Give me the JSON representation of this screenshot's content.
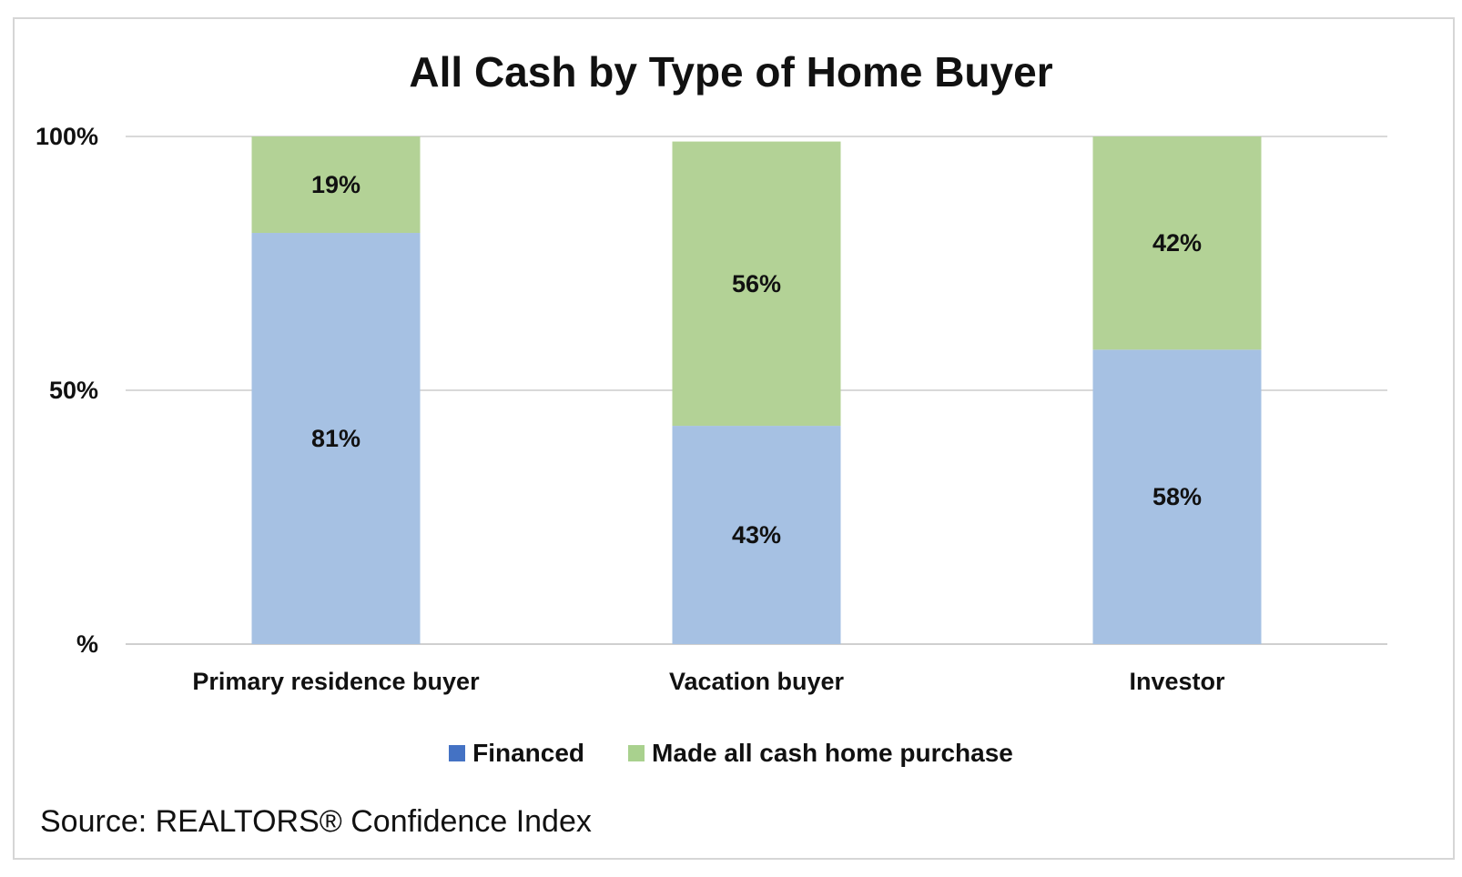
{
  "source": "Source: REALTORS® Confidence Index",
  "colors": {
    "financed_legend": "#4472c4",
    "financed_bar": "#a6c1e3",
    "cash_legend": "#a9d18e",
    "cash_bar": "#b3d296",
    "gridline": "#d9d9d9"
  },
  "chart_data": {
    "type": "bar",
    "stacked": true,
    "title": "All Cash by Type of Home Buyer",
    "xlabel": "",
    "ylabel": "",
    "categories": [
      "Primary residence buyer",
      "Vacation buyer",
      "Investor"
    ],
    "series": [
      {
        "name": "Financed",
        "values": [
          81,
          43,
          58
        ],
        "labels": [
          "81%",
          "43%",
          "58%"
        ]
      },
      {
        "name": "Made all cash home purchase",
        "values": [
          19,
          56,
          42
        ],
        "labels": [
          "19%",
          "56%",
          "42%"
        ]
      }
    ],
    "ylim": [
      0,
      100
    ],
    "yticks": [
      {
        "value": 0,
        "label": "%"
      },
      {
        "value": 50,
        "label": "50%"
      },
      {
        "value": 100,
        "label": "100%"
      }
    ],
    "grid": true,
    "legend_position": "bottom"
  }
}
